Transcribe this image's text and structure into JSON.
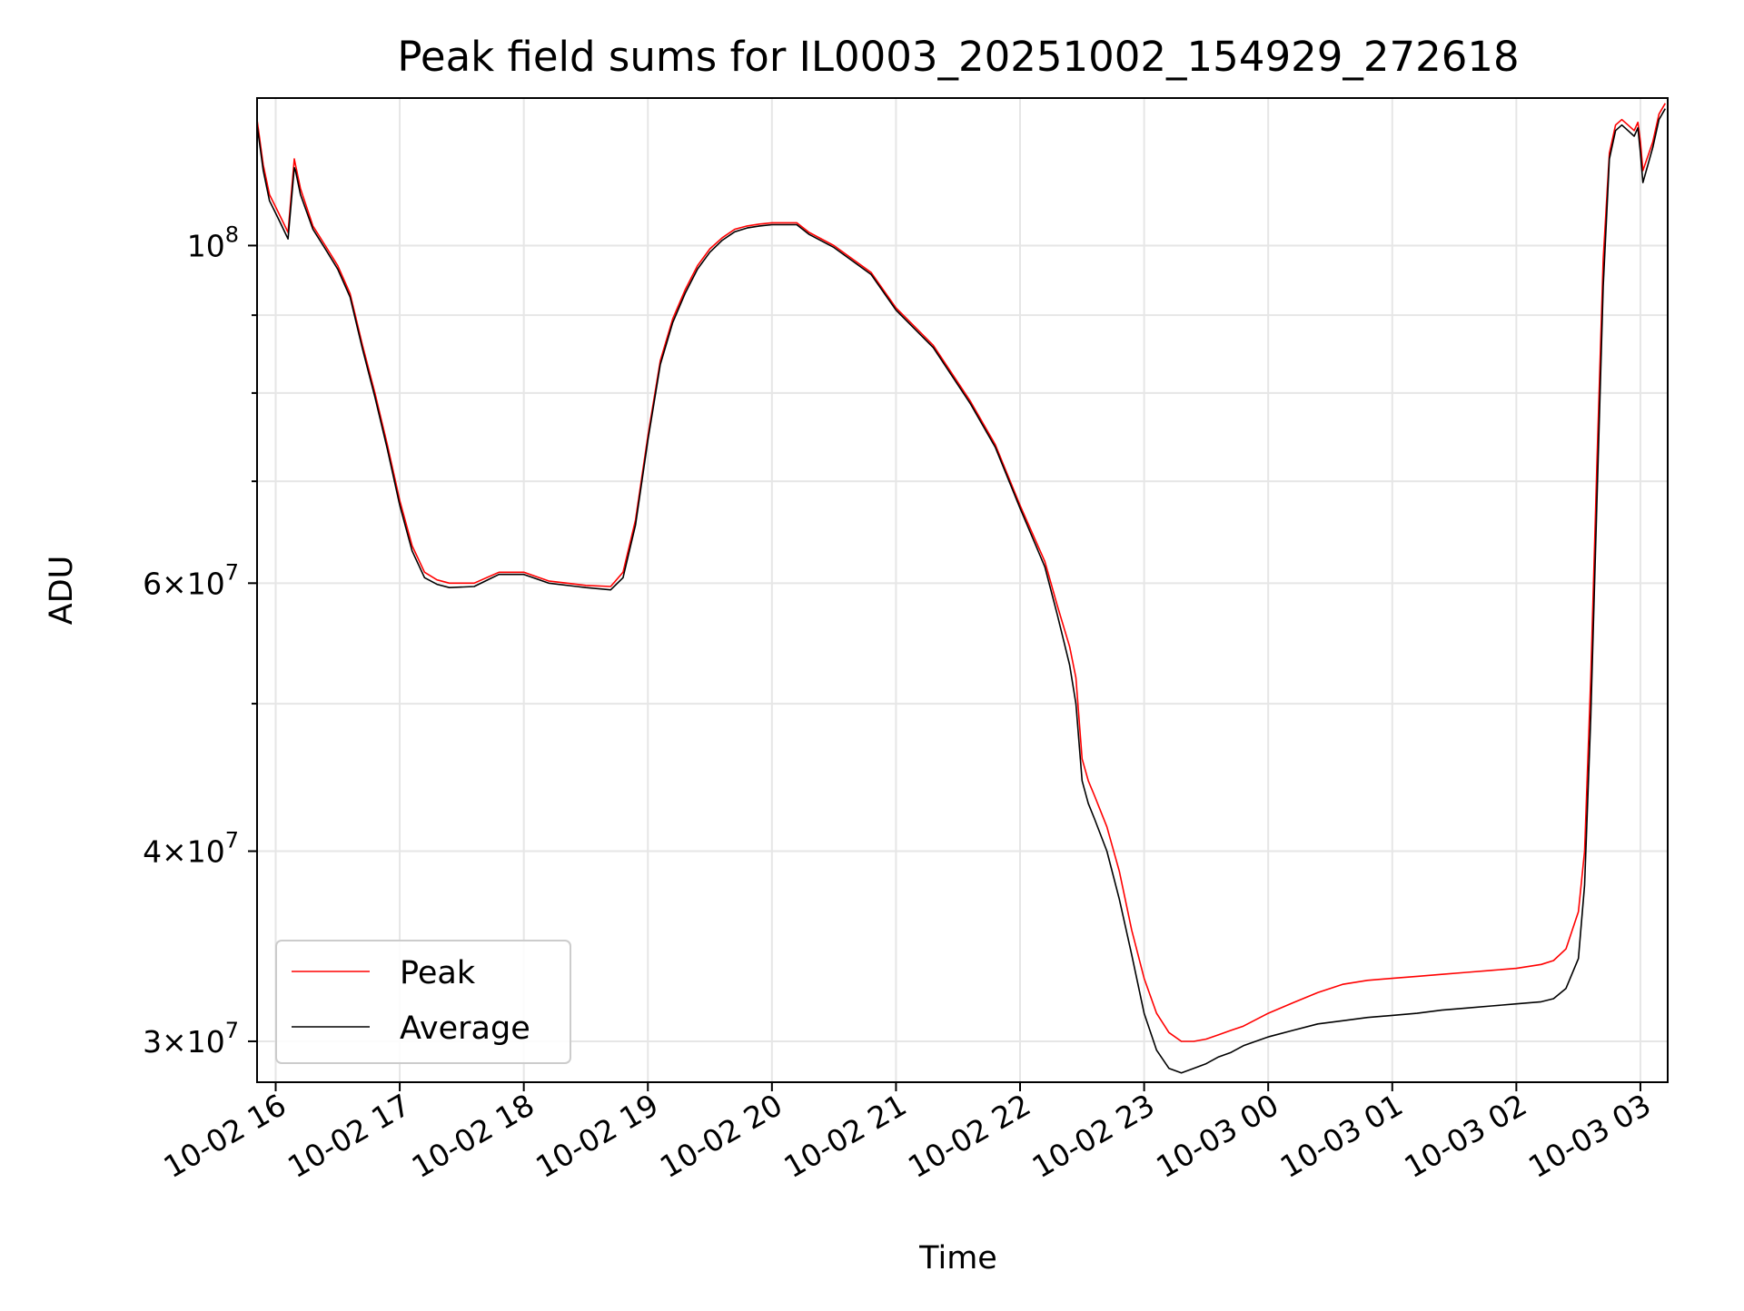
{
  "chart_data": {
    "type": "line",
    "title": "Peak field sums for IL0003_20251002_154929_272618",
    "xlabel": "Time",
    "ylabel": "ADU",
    "yscale": "log",
    "grid": true,
    "legend_position": "lower-left",
    "x_unit": "hours since 10-02 16:00",
    "xlim": [
      -0.15,
      11.22
    ],
    "ylim": [
      28200000,
      125000000
    ],
    "x_ticks": [
      {
        "value": 0,
        "label": "10-02 16"
      },
      {
        "value": 1,
        "label": "10-02 17"
      },
      {
        "value": 2,
        "label": "10-02 18"
      },
      {
        "value": 3,
        "label": "10-02 19"
      },
      {
        "value": 4,
        "label": "10-02 20"
      },
      {
        "value": 5,
        "label": "10-02 21"
      },
      {
        "value": 6,
        "label": "10-02 22"
      },
      {
        "value": 7,
        "label": "10-02 23"
      },
      {
        "value": 8,
        "label": "10-03 00"
      },
      {
        "value": 9,
        "label": "10-03 01"
      },
      {
        "value": 10,
        "label": "10-03 02"
      },
      {
        "value": 11,
        "label": "10-03 03"
      }
    ],
    "y_major_ticks": [
      {
        "value": 100000000,
        "mantissa": "",
        "base": "10",
        "exp": "8"
      },
      {
        "value": 60000000,
        "mantissa": "6×",
        "base": "10",
        "exp": "7"
      },
      {
        "value": 40000000,
        "mantissa": "4×",
        "base": "10",
        "exp": "7"
      },
      {
        "value": 30000000,
        "mantissa": "3×",
        "base": "10",
        "exp": "7"
      }
    ],
    "y_minor_ticks": [
      50000000,
      70000000,
      80000000,
      90000000
    ],
    "series": [
      {
        "name": "Peak",
        "color": "#ff0000",
        "x": [
          -0.15,
          -0.1,
          -0.05,
          0.0,
          0.05,
          0.1,
          0.15,
          0.16,
          0.2,
          0.3,
          0.4,
          0.5,
          0.6,
          0.7,
          0.8,
          0.9,
          1.0,
          1.1,
          1.2,
          1.3,
          1.4,
          1.6,
          1.8,
          2.0,
          2.2,
          2.5,
          2.7,
          2.8,
          2.9,
          3.0,
          3.1,
          3.2,
          3.3,
          3.4,
          3.5,
          3.6,
          3.7,
          3.8,
          3.9,
          4.0,
          4.2,
          4.3,
          4.5,
          4.8,
          5.0,
          5.3,
          5.6,
          5.8,
          6.0,
          6.2,
          6.3,
          6.4,
          6.45,
          6.5,
          6.55,
          6.6,
          6.7,
          6.8,
          6.9,
          7.0,
          7.1,
          7.2,
          7.3,
          7.4,
          7.5,
          7.6,
          7.7,
          7.8,
          8.0,
          8.2,
          8.4,
          8.6,
          8.8,
          9.0,
          9.2,
          9.4,
          9.6,
          9.8,
          10.0,
          10.2,
          10.3,
          10.4,
          10.5,
          10.55,
          10.6,
          10.65,
          10.7,
          10.75,
          10.8,
          10.85,
          10.9,
          10.95,
          10.98,
          11.0,
          11.02,
          11.1,
          11.15,
          11.2
        ],
        "values": [
          121000000,
          113000000,
          108000000,
          106000000,
          104000000,
          102000000,
          114000000,
          113000000,
          109000000,
          103000000,
          100000000,
          97000000,
          93000000,
          86000000,
          80000000,
          74000000,
          68000000,
          63500000,
          61000000,
          60300000,
          60000000,
          60000000,
          61000000,
          61000000,
          60200000,
          59800000,
          59700000,
          61000000,
          66000000,
          75000000,
          84000000,
          89500000,
          93500000,
          97000000,
          99500000,
          101200000,
          102500000,
          103000000,
          103300000,
          103500000,
          103500000,
          102000000,
          100000000,
          96000000,
          91000000,
          86000000,
          79000000,
          74000000,
          67500000,
          62000000,
          58000000,
          54500000,
          52000000,
          46000000,
          44500000,
          43500000,
          41500000,
          38800000,
          35500000,
          33000000,
          31300000,
          30400000,
          30000000,
          30000000,
          30100000,
          30300000,
          30500000,
          30700000,
          31300000,
          31800000,
          32300000,
          32700000,
          32900000,
          33000000,
          33100000,
          33200000,
          33300000,
          33400000,
          33500000,
          33700000,
          33900000,
          34500000,
          36500000,
          40000000,
          52000000,
          72000000,
          98000000,
          115000000,
          120000000,
          121000000,
          120000000,
          119000000,
          120500000,
          117000000,
          112000000,
          117000000,
          122000000,
          124000000
        ]
      },
      {
        "name": "Average",
        "color": "#000000",
        "x": [
          -0.15,
          -0.1,
          -0.05,
          0.0,
          0.05,
          0.1,
          0.15,
          0.16,
          0.2,
          0.3,
          0.4,
          0.5,
          0.6,
          0.7,
          0.8,
          0.9,
          1.0,
          1.1,
          1.2,
          1.3,
          1.4,
          1.6,
          1.8,
          2.0,
          2.2,
          2.5,
          2.7,
          2.8,
          2.9,
          3.0,
          3.1,
          3.2,
          3.3,
          3.4,
          3.5,
          3.6,
          3.7,
          3.8,
          3.9,
          4.0,
          4.2,
          4.3,
          4.5,
          4.8,
          5.0,
          5.3,
          5.6,
          5.8,
          6.0,
          6.2,
          6.3,
          6.4,
          6.45,
          6.5,
          6.55,
          6.6,
          6.7,
          6.8,
          6.9,
          7.0,
          7.1,
          7.2,
          7.3,
          7.4,
          7.5,
          7.6,
          7.7,
          7.8,
          8.0,
          8.2,
          8.4,
          8.6,
          8.8,
          9.0,
          9.2,
          9.4,
          9.6,
          9.8,
          10.0,
          10.2,
          10.3,
          10.4,
          10.5,
          10.55,
          10.6,
          10.65,
          10.7,
          10.75,
          10.8,
          10.85,
          10.9,
          10.95,
          10.98,
          11.0,
          11.02,
          11.1,
          11.15,
          11.2
        ],
        "values": [
          120000000,
          112000000,
          107000000,
          105000000,
          103000000,
          101000000,
          112500000,
          112000000,
          108000000,
          102500000,
          99500000,
          96500000,
          92500000,
          85500000,
          79500000,
          73500000,
          67500000,
          63000000,
          60500000,
          59900000,
          59600000,
          59700000,
          60800000,
          60800000,
          60000000,
          59600000,
          59400000,
          60500000,
          65500000,
          74500000,
          83500000,
          89000000,
          93000000,
          96500000,
          99000000,
          100800000,
          102100000,
          102700000,
          103000000,
          103200000,
          103200000,
          101700000,
          99700000,
          95700000,
          90700000,
          85700000,
          78700000,
          73700000,
          67200000,
          61500000,
          57200000,
          53000000,
          50000000,
          44500000,
          43000000,
          42000000,
          40000000,
          37200000,
          34200000,
          31300000,
          29600000,
          28800000,
          28600000,
          28800000,
          29000000,
          29300000,
          29500000,
          29800000,
          30200000,
          30500000,
          30800000,
          30950000,
          31100000,
          31200000,
          31300000,
          31450000,
          31550000,
          31650000,
          31750000,
          31850000,
          32000000,
          32500000,
          34000000,
          38000000,
          49000000,
          68000000,
          94000000,
          114000000,
          119000000,
          120000000,
          119000000,
          118000000,
          119500000,
          115000000,
          110000000,
          116000000,
          121000000,
          123000000
        ]
      }
    ]
  },
  "legend": {
    "peak_label": "Peak",
    "average_label": "Average"
  }
}
